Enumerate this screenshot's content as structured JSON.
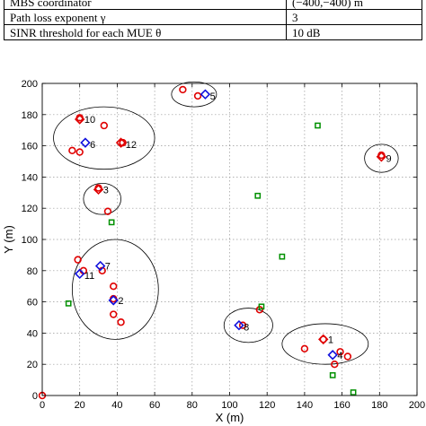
{
  "param_table": {
    "rows": [
      {
        "name": "MBS coordinator",
        "value": "(−400,−400) m"
      },
      {
        "name": "Path loss exponent γ",
        "value": "3"
      },
      {
        "name": "SINR threshold for each MUE θ",
        "value": "10 dB"
      }
    ]
  },
  "colors": {
    "mue": "#e00000",
    "sbs": "#1010dd",
    "sue": "#009000",
    "cluster": "#000000",
    "grid": "#999999"
  },
  "chart_data": {
    "type": "scatter",
    "xlabel": "X (m)",
    "ylabel": "Y (m)",
    "xlim": [
      0,
      200
    ],
    "ylim": [
      0,
      200
    ],
    "xticks": [
      0,
      20,
      40,
      60,
      80,
      100,
      120,
      140,
      160,
      180,
      200
    ],
    "yticks": [
      0,
      20,
      40,
      60,
      80,
      100,
      120,
      140,
      160,
      180,
      200
    ],
    "grid": true,
    "series": [
      {
        "marker": "circle",
        "color": "#e00000",
        "points": [
          [
            0,
            0
          ],
          [
            75,
            196
          ],
          [
            83,
            192
          ],
          [
            20,
            178
          ],
          [
            33,
            173
          ],
          [
            43,
            162
          ],
          [
            16,
            157
          ],
          [
            20,
            156
          ],
          [
            30,
            133
          ],
          [
            35,
            118
          ],
          [
            19,
            87
          ],
          [
            22,
            80
          ],
          [
            32,
            80
          ],
          [
            38,
            70
          ],
          [
            38,
            62
          ],
          [
            38,
            52
          ],
          [
            42,
            47
          ],
          [
            181,
            154
          ],
          [
            107,
            45
          ],
          [
            116,
            55
          ],
          [
            150,
            36
          ],
          [
            140,
            30
          ],
          [
            159,
            28
          ],
          [
            163,
            25
          ],
          [
            156,
            20
          ]
        ]
      },
      {
        "marker": "diamond",
        "color": "#1010dd",
        "points": [
          [
            87,
            193
          ],
          [
            23,
            162
          ],
          [
            20,
            78
          ],
          [
            31,
            83
          ],
          [
            38,
            61
          ],
          [
            105,
            45
          ],
          [
            155,
            26
          ]
        ]
      },
      {
        "marker": "diamond",
        "color": "#e00000",
        "points": [
          [
            20,
            177
          ],
          [
            42,
            162
          ],
          [
            30,
            132
          ],
          [
            181,
            153
          ],
          [
            150,
            36
          ]
        ]
      },
      {
        "marker": "square",
        "color": "#009000",
        "points": [
          [
            147,
            173
          ],
          [
            115,
            128
          ],
          [
            37,
            111
          ],
          [
            128,
            89
          ],
          [
            14,
            59
          ],
          [
            117,
            57
          ],
          [
            155,
            13
          ],
          [
            166,
            2
          ]
        ]
      }
    ],
    "clusters": [
      {
        "label": "1",
        "cx": 151,
        "cy": 33,
        "rx": 23,
        "ry": 13
      },
      {
        "label": "2",
        "cx": 39,
        "cy": 68,
        "rx": 23,
        "ry": 32
      },
      {
        "label": "3",
        "cx": 32,
        "cy": 126,
        "rx": 10,
        "ry": 10
      },
      {
        "label": "5",
        "cx": 81,
        "cy": 193,
        "rx": 12,
        "ry": 8
      },
      {
        "label": "8",
        "cx": 110,
        "cy": 45,
        "rx": 13,
        "ry": 11
      },
      {
        "label": "9",
        "cx": 181,
        "cy": 152,
        "rx": 9,
        "ry": 9
      },
      {
        "label": "10",
        "cx": 33,
        "cy": 165,
        "rx": 27,
        "ry": 20
      }
    ],
    "point_labels": [
      {
        "text": "1",
        "x": 152,
        "y": 36
      },
      {
        "text": "2",
        "x": 40,
        "y": 61
      },
      {
        "text": "3",
        "x": 32,
        "y": 132
      },
      {
        "text": "4",
        "x": 157,
        "y": 26
      },
      {
        "text": "5",
        "x": 89,
        "y": 192
      },
      {
        "text": "6",
        "x": 25,
        "y": 161
      },
      {
        "text": "7",
        "x": 33,
        "y": 83
      },
      {
        "text": "8",
        "x": 107,
        "y": 44
      },
      {
        "text": "9",
        "x": 183,
        "y": 152
      },
      {
        "text": "10",
        "x": 22,
        "y": 177
      },
      {
        "text": "11",
        "x": 22,
        "y": 77
      },
      {
        "text": "12",
        "x": 44,
        "y": 161
      }
    ]
  }
}
